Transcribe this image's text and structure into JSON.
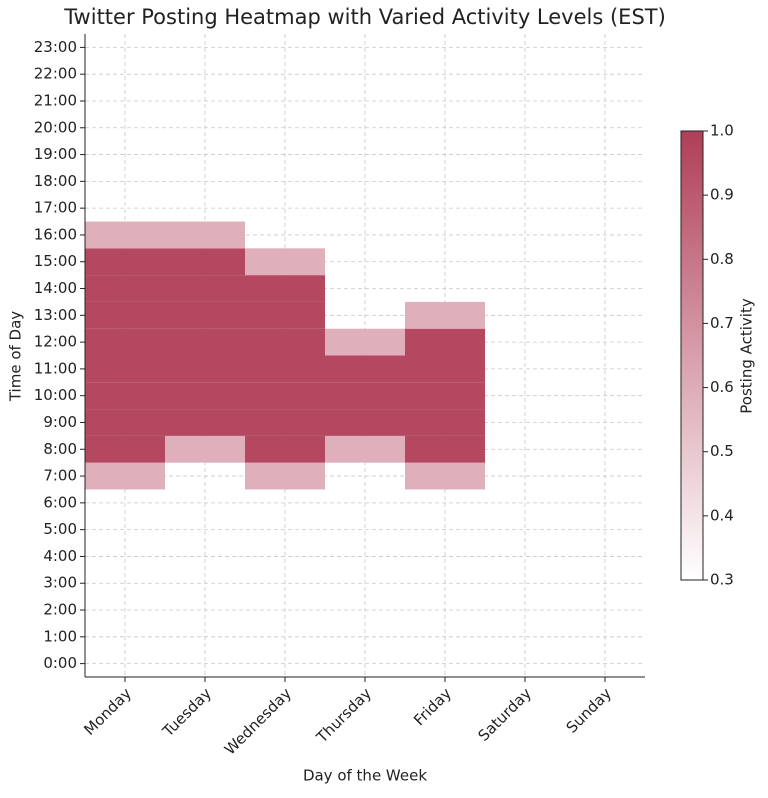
{
  "chart_data": {
    "type": "heatmap",
    "title": "Twitter Posting Heatmap with Varied Activity Levels (EST)",
    "x_label": "Day of the Week",
    "y_label": "Time of Day",
    "categories": [
      "Monday",
      "Tuesday",
      "Wednesday",
      "Thursday",
      "Friday",
      "Saturday",
      "Sunday"
    ],
    "y_categories": [
      "0:00",
      "1:00",
      "2:00",
      "3:00",
      "4:00",
      "5:00",
      "6:00",
      "7:00",
      "8:00",
      "9:00",
      "10:00",
      "11:00",
      "12:00",
      "13:00",
      "14:00",
      "15:00",
      "16:00",
      "17:00",
      "18:00",
      "19:00",
      "20:00",
      "21:00",
      "22:00",
      "23:00"
    ],
    "values": [
      [
        null,
        null,
        null,
        null,
        null,
        null,
        null,
        0.6,
        1,
        1,
        1,
        1,
        1,
        1,
        1,
        1,
        0.6,
        null,
        null,
        null,
        null,
        null,
        null,
        null
      ],
      [
        null,
        null,
        null,
        null,
        null,
        null,
        null,
        null,
        0.6,
        1,
        1,
        1,
        1,
        1,
        1,
        1,
        0.6,
        null,
        null,
        null,
        null,
        null,
        null,
        null
      ],
      [
        null,
        null,
        null,
        null,
        null,
        null,
        null,
        0.6,
        1,
        1,
        1,
        1,
        1,
        1,
        1,
        0.6,
        null,
        null,
        null,
        null,
        null,
        null,
        null,
        null
      ],
      [
        null,
        null,
        null,
        null,
        null,
        null,
        null,
        null,
        0.6,
        1,
        1,
        1,
        0.6,
        null,
        null,
        null,
        null,
        null,
        null,
        null,
        null,
        null,
        null,
        null
      ],
      [
        null,
        null,
        null,
        null,
        null,
        null,
        null,
        0.6,
        1,
        1,
        1,
        1,
        1,
        0.6,
        null,
        null,
        null,
        null,
        null,
        null,
        null,
        null,
        null,
        null
      ],
      [
        null,
        null,
        null,
        null,
        null,
        null,
        null,
        null,
        null,
        null,
        null,
        null,
        null,
        null,
        null,
        null,
        null,
        null,
        null,
        null,
        null,
        null,
        null,
        null
      ],
      [
        null,
        null,
        null,
        null,
        null,
        null,
        null,
        null,
        null,
        null,
        null,
        null,
        null,
        null,
        null,
        null,
        null,
        null,
        null,
        null,
        null,
        null,
        null,
        null
      ]
    ],
    "colors": [
      "#ffffff",
      "#b03e58"
    ],
    "grid": true,
    "colorbar": {
      "label": "Posting Activity",
      "lim": [
        0.3,
        1.0
      ],
      "ticks": [
        0.3,
        0.4,
        0.5,
        0.6,
        0.7,
        0.8,
        0.9,
        {
          "value": 1,
          "label": "1.0"
        }
      ]
    }
  }
}
